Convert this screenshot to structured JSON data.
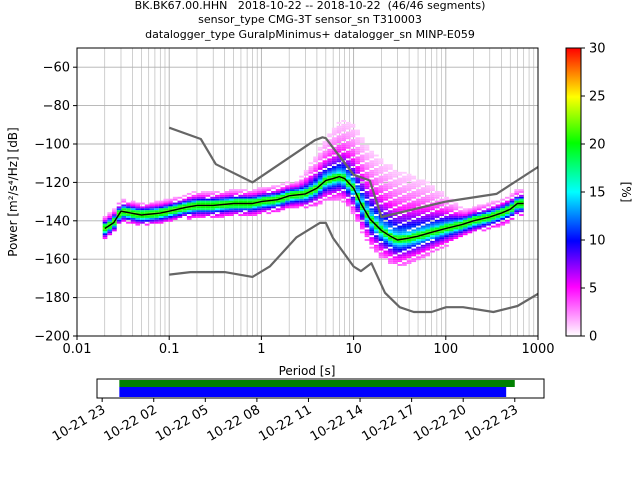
{
  "header": {
    "line1": "BK.BK67.00.HHN   2018-10-22 -- 2018-10-22  (46/46 segments)",
    "line2": "sensor_type CMG-3T sensor_sn T310003",
    "line3": "datalogger_type GuralpMinimus+ datalogger_sn MINP-E059"
  },
  "chart_data": {
    "type": "heatmap",
    "xlabel": "Period [s]",
    "ylabel": "Power [m²/s⁴/Hz] [dB]",
    "xscale": "log",
    "xlim": [
      0.01,
      1000
    ],
    "ylim": [
      -200,
      -50
    ],
    "xticks": [
      {
        "v": 0.01,
        "label": "0.01"
      },
      {
        "v": 0.1,
        "label": "0.1"
      },
      {
        "v": 1,
        "label": "1"
      },
      {
        "v": 10,
        "label": "10"
      },
      {
        "v": 100,
        "label": "100"
      },
      {
        "v": 1000,
        "label": "1000"
      }
    ],
    "yticks": [
      -60,
      -80,
      -100,
      -120,
      -140,
      -160,
      -180,
      -200
    ],
    "grid": true,
    "colorbar": {
      "label": "[%]",
      "ticks": [
        0,
        5,
        10,
        15,
        20,
        25,
        30
      ],
      "range": [
        0,
        30
      ],
      "colors": [
        "#ffffff",
        "#ff00ff",
        "#0000ff",
        "#00ffff",
        "#00ff00",
        "#ffff00",
        "#ff0000"
      ]
    },
    "mean_curve": {
      "x": [
        0.02,
        0.025,
        0.03,
        0.05,
        0.08,
        0.1,
        0.15,
        0.2,
        0.3,
        0.5,
        0.8,
        1.0,
        1.5,
        2.0,
        3.0,
        4.0,
        5.0,
        6.0,
        7.0,
        8.0,
        10,
        12,
        15,
        20,
        25,
        30,
        40,
        50,
        70,
        100,
        150,
        200,
        300,
        400,
        500,
        600,
        700
      ],
      "y": [
        -144,
        -141,
        -135,
        -137,
        -136,
        -135,
        -133,
        -132,
        -132,
        -131,
        -131,
        -130,
        -129,
        -127,
        -126,
        -123,
        -119,
        -118,
        -117,
        -118,
        -123,
        -131,
        -139,
        -145,
        -148,
        -150,
        -149,
        -148,
        -146,
        -144,
        -142,
        -140,
        -138,
        -136,
        -134,
        -131,
        -131
      ]
    },
    "noise_model_high": {
      "x": [
        0.1,
        0.22,
        0.32,
        0.8,
        3.8,
        4.6,
        5.0,
        6.0,
        10,
        15,
        20,
        100,
        354.8,
        1000
      ],
      "y": [
        -91.5,
        -97.4,
        -110.5,
        -120,
        -98,
        -96.5,
        -97,
        -102,
        -116,
        -119,
        -138,
        -130,
        -126,
        -112
      ]
    },
    "noise_model_low": {
      "x": [
        0.1,
        0.17,
        0.4,
        0.8,
        1.24,
        2.4,
        4.3,
        5.0,
        6.0,
        10,
        12,
        15.6,
        21.9,
        31.6,
        45,
        70,
        101,
        154,
        328,
        600,
        1000
      ],
      "y": [
        -168,
        -166.7,
        -166.7,
        -169.2,
        -163.7,
        -148.6,
        -141.1,
        -141.1,
        -149,
        -163.8,
        -166.2,
        -162.1,
        -177.5,
        -185,
        -187.5,
        -187.5,
        -185,
        -185,
        -187.5,
        -184.4,
        -178
      ]
    },
    "timeline": {
      "tick_labels": [
        "10-21 23",
        "10-22 02",
        "10-22 05",
        "10-22 08",
        "10-22 11",
        "10-22 14",
        "10-22 17",
        "10-22 20",
        "10-22 23"
      ],
      "range_hours": [
        -1.3,
        24.7
      ],
      "coverage_start_hours": 0.0,
      "coverage_end_hours_green": 23.0,
      "coverage_end_hours_blue": 22.5,
      "colors": {
        "data": "#008000",
        "used": "#0000ff"
      }
    }
  }
}
